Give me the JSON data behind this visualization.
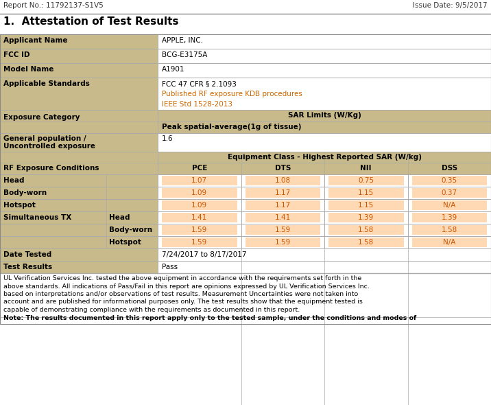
{
  "report_no": "Report No.: 11792137-S1V5",
  "issue_date": "Issue Date: 9/5/2017",
  "section_title": "1.  Attestation of Test Results",
  "applicant_name": "APPLE, INC.",
  "fcc_id": "BCG-E3175A",
  "model_name": "A1901",
  "applicable_standards": [
    "FCC 47 CFR § 2.1093",
    "Published RF exposure KDB procedures",
    "IEEE Std 1528-2013"
  ],
  "sar_limits_header": "SAR Limits (W/Kg)",
  "peak_spatial": "Peak spatial-average(1g of tissue)",
  "general_population_value": "1.6",
  "equipment_class_header": "Equipment Class - Highest Reported SAR (W/kg)",
  "rf_exposure_label": "RF Exposure Conditions",
  "col_headers": [
    "PCE",
    "DTS",
    "NII",
    "DSS"
  ],
  "rows": [
    {
      "label1": "Head",
      "label2": "",
      "values": [
        "1.07",
        "1.08",
        "0.75",
        "0.35"
      ]
    },
    {
      "label1": "Body-worn",
      "label2": "",
      "values": [
        "1.09",
        "1.17",
        "1.15",
        "0.37"
      ]
    },
    {
      "label1": "Hotspot",
      "label2": "",
      "values": [
        "1.09",
        "1.17",
        "1.15",
        "N/A"
      ]
    },
    {
      "label1": "Simultaneous TX",
      "label2": "Head",
      "values": [
        "1.41",
        "1.41",
        "1.39",
        "1.39"
      ]
    },
    {
      "label1": "",
      "label2": "Body-worn",
      "values": [
        "1.59",
        "1.59",
        "1.58",
        "1.58"
      ]
    },
    {
      "label1": "",
      "label2": "Hotspot",
      "values": [
        "1.59",
        "1.59",
        "1.58",
        "N/A"
      ]
    }
  ],
  "date_tested_label": "Date Tested",
  "date_tested_value": "7/24/2017 to 8/17/2017",
  "test_results_label": "Test Results",
  "test_results_value": "Pass",
  "footer_lines": [
    "UL Verification Services Inc. tested the above equipment in accordance with the requirements set forth in the",
    "above standards. All indications of Pass/Fail in this report are opinions expressed by UL Verification Services Inc.",
    "based on interpretations and/or observations of test results. Measurement Uncertainties were not taken into",
    "account and are published for informational purposes only. The test results show that the equipment tested is",
    "capable of demonstrating compliance with the requirements as documented in this report."
  ],
  "note_line": "Note: The results documented in this report apply only to the tested sample, under the conditions and modes of",
  "bg_color": "#ffffff",
  "label_bg": "#c8ba8b",
  "value_orange_bg": "#ffd9b3",
  "border_color": "#aaaaaa",
  "tan_header_bg": "#c8ba8b",
  "col_header_bg": "#c8ba8b"
}
